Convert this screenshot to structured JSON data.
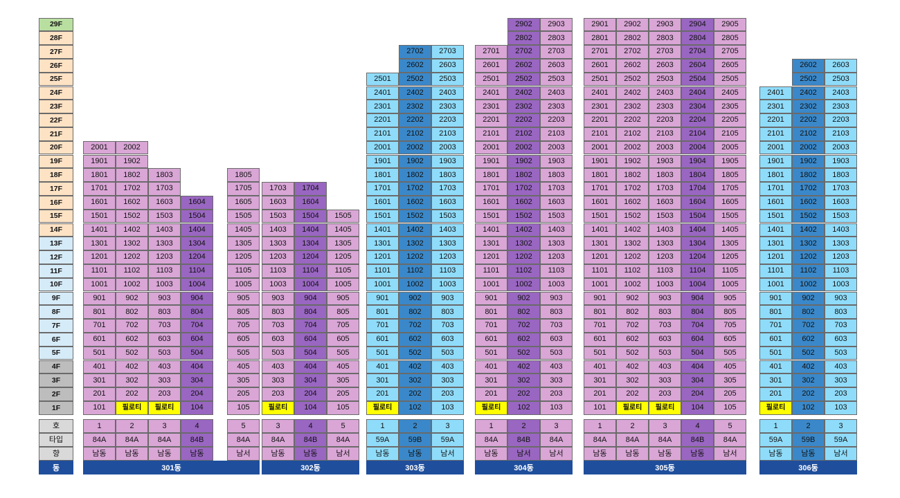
{
  "colors": {
    "pink": "#d9a6d6",
    "pink_dark": "#9966c1",
    "blue": "#8fdcfa",
    "blue_dark": "#3a88c9",
    "piloti": "#ffff00",
    "floor_green": "#b9dfa0",
    "floor_orange": "#fde2c4",
    "floor_lightblue": "#d6ebf8",
    "floor_gray": "#bdbdbd",
    "info_gray": "#d9d9d9",
    "dong_blue": "#1f4e9c"
  },
  "piloti_label": "필로티",
  "floors": [
    "29F",
    "28F",
    "27F",
    "26F",
    "25F",
    "24F",
    "23F",
    "22F",
    "21F",
    "20F",
    "19F",
    "18F",
    "17F",
    "16F",
    "15F",
    "14F",
    "13F",
    "12F",
    "11F",
    "10F",
    "9F",
    "8F",
    "7F",
    "6F",
    "5F",
    "4F",
    "3F",
    "2F",
    "1F"
  ],
  "legend": {
    "ho": "호",
    "type": "타입",
    "dir": "향",
    "dong": "동"
  },
  "buildings": [
    {
      "name": "301동",
      "scheme": "pink",
      "lines": [
        {
          "ho": "1",
          "type": "84A",
          "dir": "남동",
          "top": 20,
          "piloti": false,
          "hl": false
        },
        {
          "ho": "2",
          "type": "84A",
          "dir": "남동",
          "top": 20,
          "piloti": true,
          "hl": false
        },
        {
          "ho": "3",
          "type": "84A",
          "dir": "남동",
          "top": 18,
          "piloti": true,
          "hl": false
        },
        {
          "ho": "4",
          "type": "84B",
          "dir": "남동",
          "top": 16,
          "piloti": false,
          "hl": true
        },
        {
          "ho": "5",
          "type": "84A",
          "dir": "남서",
          "top": 18,
          "piloti": false,
          "hl": false,
          "gap": 17
        }
      ]
    },
    {
      "name": "302동",
      "scheme": "pink",
      "lines": [
        {
          "ho": "3",
          "type": "84A",
          "dir": "남동",
          "top": 17,
          "piloti": true,
          "hl": false
        },
        {
          "ho": "4",
          "type": "84B",
          "dir": "남동",
          "top": 17,
          "piloti": false,
          "hl": true
        },
        {
          "ho": "5",
          "type": "84A",
          "dir": "남서",
          "top": 15,
          "piloti": false,
          "hl": false
        }
      ]
    },
    {
      "name": "303동",
      "scheme": "blue",
      "lines": [
        {
          "ho": "1",
          "type": "59A",
          "dir": "남동",
          "top": 25,
          "piloti": true,
          "hl": false
        },
        {
          "ho": "2",
          "type": "59B",
          "dir": "남동",
          "top": 27,
          "piloti": false,
          "hl": true
        },
        {
          "ho": "3",
          "type": "59A",
          "dir": "남서",
          "top": 27,
          "piloti": false,
          "hl": false
        }
      ]
    },
    {
      "name": "304동",
      "scheme": "pink",
      "lines": [
        {
          "ho": "1",
          "type": "84A",
          "dir": "남동",
          "top": 27,
          "piloti": true,
          "hl": false
        },
        {
          "ho": "2",
          "type": "84B",
          "dir": "남서",
          "top": 29,
          "piloti": false,
          "hl": true
        },
        {
          "ho": "3",
          "type": "84A",
          "dir": "남서",
          "top": 29,
          "piloti": false,
          "hl": false
        }
      ]
    },
    {
      "name": "305동",
      "scheme": "pink",
      "lines": [
        {
          "ho": "1",
          "type": "84A",
          "dir": "남동",
          "top": 29,
          "piloti": false,
          "hl": false
        },
        {
          "ho": "2",
          "type": "84A",
          "dir": "남동",
          "top": 29,
          "piloti": true,
          "hl": false
        },
        {
          "ho": "3",
          "type": "84A",
          "dir": "남동",
          "top": 29,
          "piloti": true,
          "hl": false
        },
        {
          "ho": "4",
          "type": "84B",
          "dir": "남동",
          "top": 29,
          "piloti": false,
          "hl": true
        },
        {
          "ho": "5",
          "type": "84A",
          "dir": "남서",
          "top": 29,
          "piloti": false,
          "hl": false
        }
      ]
    },
    {
      "name": "306동",
      "scheme": "blue",
      "lines": [
        {
          "ho": "1",
          "type": "59A",
          "dir": "남동",
          "top": 24,
          "piloti": true,
          "hl": false
        },
        {
          "ho": "2",
          "type": "59B",
          "dir": "남동",
          "top": 26,
          "piloti": false,
          "hl": true
        },
        {
          "ho": "3",
          "type": "59A",
          "dir": "남서",
          "top": 26,
          "piloti": false,
          "hl": false
        }
      ]
    }
  ]
}
